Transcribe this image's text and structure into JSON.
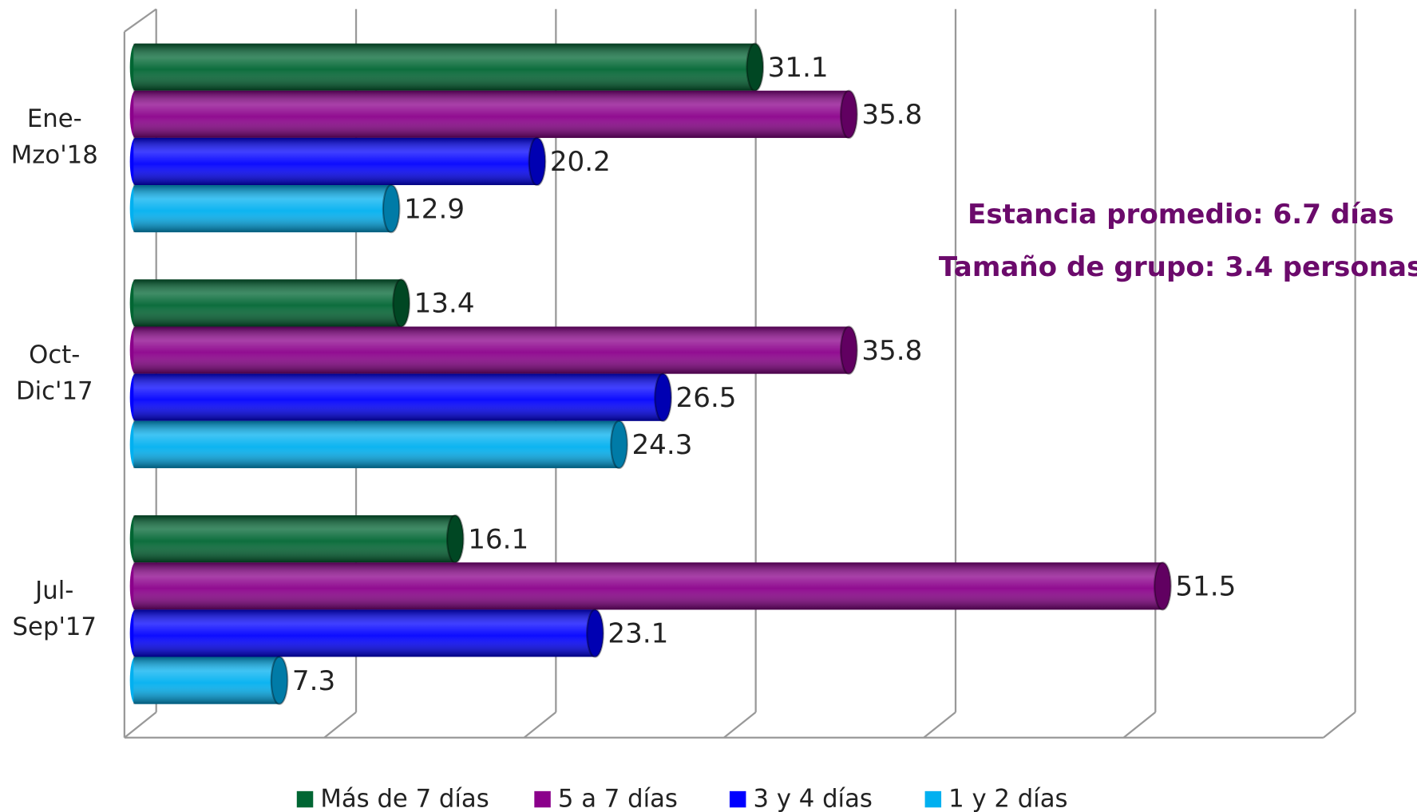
{
  "chart_data": {
    "type": "bar",
    "orientation": "horizontal",
    "categories": [
      "Ene-Mzo'18",
      "Oct-Dic'17",
      "Jul-Sep'17"
    ],
    "series": [
      {
        "name": "Más de 7 días",
        "color": "#006633",
        "values": [
          31.1,
          13.4,
          16.1
        ]
      },
      {
        "name": "5 a 7 días",
        "color": "#8b008b",
        "values": [
          35.8,
          35.8,
          51.5
        ]
      },
      {
        "name": "3 y 4 días",
        "color": "#0000ff",
        "values": [
          20.2,
          26.5,
          23.1
        ]
      },
      {
        "name": "1 y 2 días",
        "color": "#00b0f0",
        "values": [
          12.9,
          24.3,
          7.3
        ]
      }
    ],
    "xlim": [
      0,
      60
    ],
    "xticks": [
      0,
      10,
      20,
      30,
      40,
      50,
      60
    ],
    "grid": true,
    "legend": "bottom",
    "annotations": [
      {
        "text": "Estancia promedio: 6.7 días",
        "color": "#6b0a6b"
      },
      {
        "text": "Tamaño de grupo: 3.4 personas",
        "color": "#6b0a6b"
      }
    ]
  }
}
